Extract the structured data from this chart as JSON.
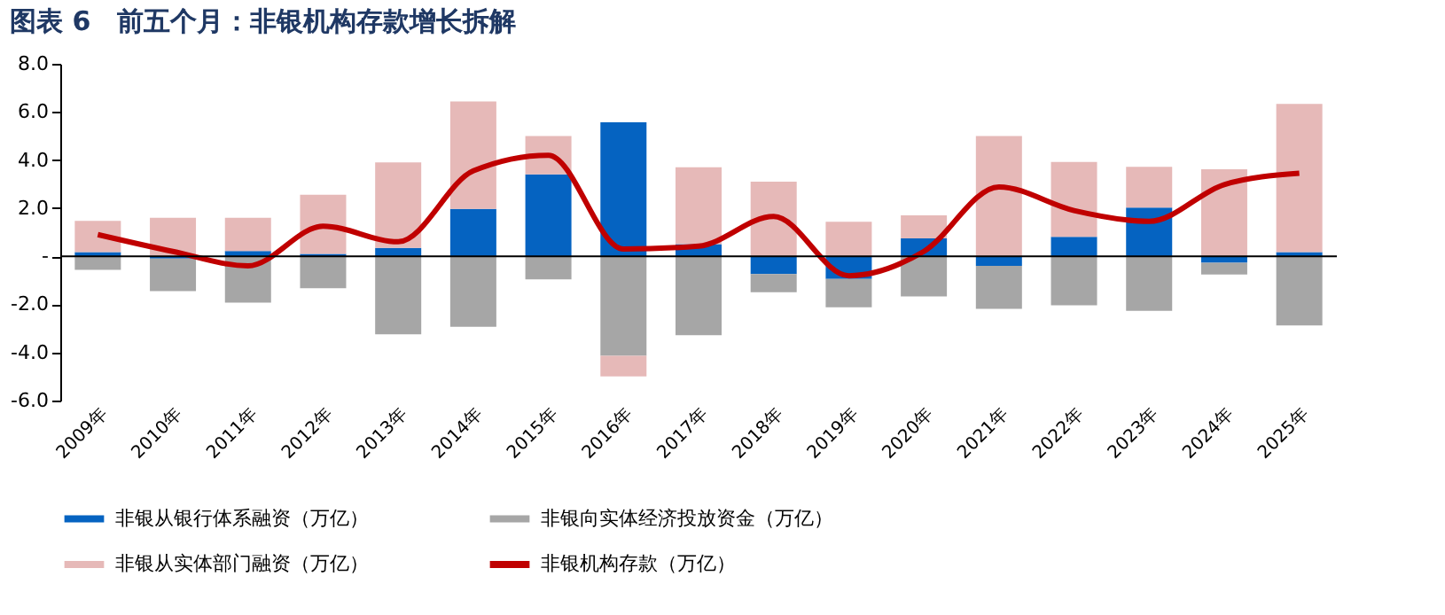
{
  "chart_data": {
    "type": "bar",
    "stacked": true,
    "title": "图表 6　前五个月：非银机构存款增长拆解",
    "categories": [
      "2009年",
      "2010年",
      "2011年",
      "2012年",
      "2013年",
      "2014年",
      "2015年",
      "2016年",
      "2017年",
      "2018年",
      "2019年",
      "2020年",
      "2021年",
      "2022年",
      "2023年",
      "2024年",
      "2025年"
    ],
    "series": [
      {
        "name": "非银从银行体系融资（万亿）",
        "color": "#0563c1",
        "values": [
          0.17,
          -0.1,
          0.22,
          0.1,
          0.35,
          1.97,
          3.4,
          5.57,
          0.5,
          -0.74,
          -0.94,
          0.74,
          -0.4,
          0.81,
          2.02,
          -0.27,
          0.17
        ]
      },
      {
        "name": "非银向实体经济投放资金（万亿）",
        "color": "#a6a6a6",
        "values": [
          -0.57,
          -1.35,
          -1.93,
          -1.33,
          -3.25,
          -2.93,
          -0.96,
          -4.14,
          -3.28,
          -0.76,
          -1.18,
          -1.67,
          -1.79,
          -2.04,
          -2.27,
          -0.49,
          -2.88
        ]
      },
      {
        "name": "非银从实体部门融资（万亿）",
        "color": "#e6b9b8",
        "values": [
          1.3,
          1.6,
          1.38,
          2.46,
          3.55,
          4.46,
          1.6,
          -0.86,
          3.2,
          3.1,
          1.43,
          0.96,
          5.0,
          3.11,
          1.7,
          3.62,
          6.16
        ]
      },
      {
        "name": "非银机构存款（万亿）",
        "type": "line",
        "color": "#c00000",
        "values": [
          0.9,
          0.2,
          -0.4,
          1.25,
          0.6,
          3.55,
          4.2,
          0.3,
          0.42,
          1.65,
          -0.81,
          0.2,
          2.88,
          1.9,
          1.45,
          2.98,
          3.45
        ]
      }
    ],
    "ylim": [
      -6,
      8
    ],
    "yticks": [
      {
        "value": -6,
        "label": "-6.0"
      },
      {
        "value": -4,
        "label": "-4.0"
      },
      {
        "value": -2,
        "label": "-2.0"
      },
      {
        "value": 0,
        "label": "-"
      },
      {
        "value": 2,
        "label": "2.0"
      },
      {
        "value": 4,
        "label": "4.0"
      },
      {
        "value": 6,
        "label": "6.0"
      },
      {
        "value": 8,
        "label": "8.0"
      }
    ],
    "ref_lines": [
      {
        "axis": "y",
        "value": 0,
        "color": "#000000"
      }
    ],
    "grid": false,
    "legend": "bottom"
  }
}
